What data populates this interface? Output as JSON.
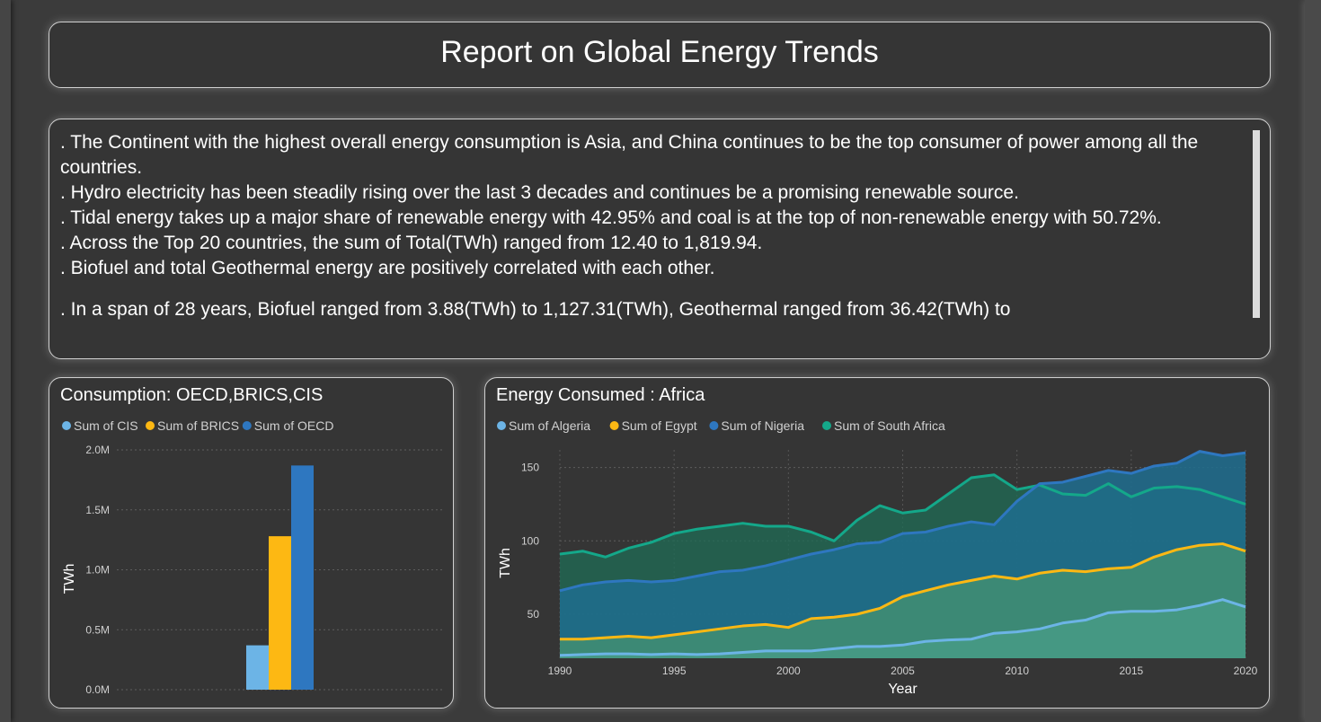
{
  "title": "Report on Global  Energy Trends",
  "insights": [
    ". The Continent with the highest overall energy consumption  is Asia,  and China continues to be the top consumer of power among all the countries.",
    ". Hydro electricity has been steadily rising over the last 3 decades and continues be a promising renewable source.",
    ". Tidal energy takes up a major share of renewable energy with 42.95% and coal is at the top of non-renewable energy with 50.72%.",
    ".  Across the Top 20 countries, the sum of Total(TWh) ranged from 12.40 to 1,819.94.",
    ". Biofuel and total Geothermal energy are positively correlated with each other.",
    ". In a span of 28 years, Biofuel ranged from 3.88(TWh) to 1,127.31(TWh), Geothermal ranged from 36.42(TWh) to"
  ],
  "chart_data": [
    {
      "type": "bar",
      "title": "Consumption: OECD,BRICS,CIS",
      "ylabel": "TWh",
      "xlabel": "",
      "ylim": [
        0,
        2000000
      ],
      "yticks": [
        0,
        500000,
        1000000,
        1500000,
        2000000
      ],
      "ytick_labels": [
        "0.0M",
        "0.5M",
        "1.0M",
        "1.5M",
        "2.0M"
      ],
      "grid": true,
      "legend_position": "top-left",
      "series": [
        {
          "name": "Sum of CIS",
          "value": 370000,
          "color": "#6cb4e6"
        },
        {
          "name": "Sum of BRICS",
          "value": 1280000,
          "color": "#fdb813"
        },
        {
          "name": "Sum of OECD",
          "value": 1870000,
          "color": "#2e77c0"
        }
      ]
    },
    {
      "type": "area",
      "title": "Energy Consumed : Africa",
      "xlabel": "Year",
      "ylabel": "TWh",
      "ylim": [
        20,
        162
      ],
      "yticks": [
        50,
        100,
        150
      ],
      "xticks": [
        1990,
        1995,
        2000,
        2005,
        2010,
        2015,
        2020
      ],
      "grid": true,
      "legend_position": "top-left",
      "x": [
        1990,
        1991,
        1992,
        1993,
        1994,
        1995,
        1996,
        1997,
        1998,
        1999,
        2000,
        2001,
        2002,
        2003,
        2004,
        2005,
        2006,
        2007,
        2008,
        2009,
        2010,
        2011,
        2012,
        2013,
        2014,
        2015,
        2016,
        2017,
        2018,
        2019,
        2020
      ],
      "series": [
        {
          "name": "Sum of Algeria",
          "color": "#6cb4e6",
          "values": [
            22,
            22.5,
            23,
            23,
            22.5,
            23,
            22.5,
            23,
            24,
            25,
            25,
            25,
            26.5,
            28,
            28,
            29,
            31.5,
            32.5,
            33,
            37,
            38,
            40,
            44,
            46,
            51,
            52,
            52,
            53,
            56,
            60,
            55
          ]
        },
        {
          "name": "Sum of Egypt",
          "color": "#fdb813",
          "values": [
            33,
            33,
            34,
            35,
            34,
            36,
            38,
            40,
            42,
            43,
            41,
            47,
            48,
            50,
            54,
            62,
            66,
            70,
            73,
            76,
            74,
            78,
            80,
            79,
            81,
            82,
            89,
            94,
            97,
            98,
            93
          ]
        },
        {
          "name": "Sum of Nigeria",
          "color": "#2e77c0",
          "values": [
            66,
            70,
            72,
            73,
            72,
            73,
            76,
            79,
            80,
            83,
            87,
            91,
            94,
            98,
            99,
            105,
            106,
            110,
            113,
            111,
            127,
            139,
            140,
            144,
            148,
            146,
            151,
            153,
            161,
            158,
            160
          ]
        },
        {
          "name": "Sum of South Africa",
          "color": "#14a88a",
          "values": [
            91,
            93,
            89,
            95,
            99,
            105,
            108,
            110,
            112,
            110,
            110,
            106,
            100,
            114,
            124,
            119,
            121,
            132,
            143,
            145,
            135,
            138,
            132,
            131,
            139,
            130,
            136,
            137,
            135,
            130,
            125
          ]
        }
      ]
    }
  ]
}
